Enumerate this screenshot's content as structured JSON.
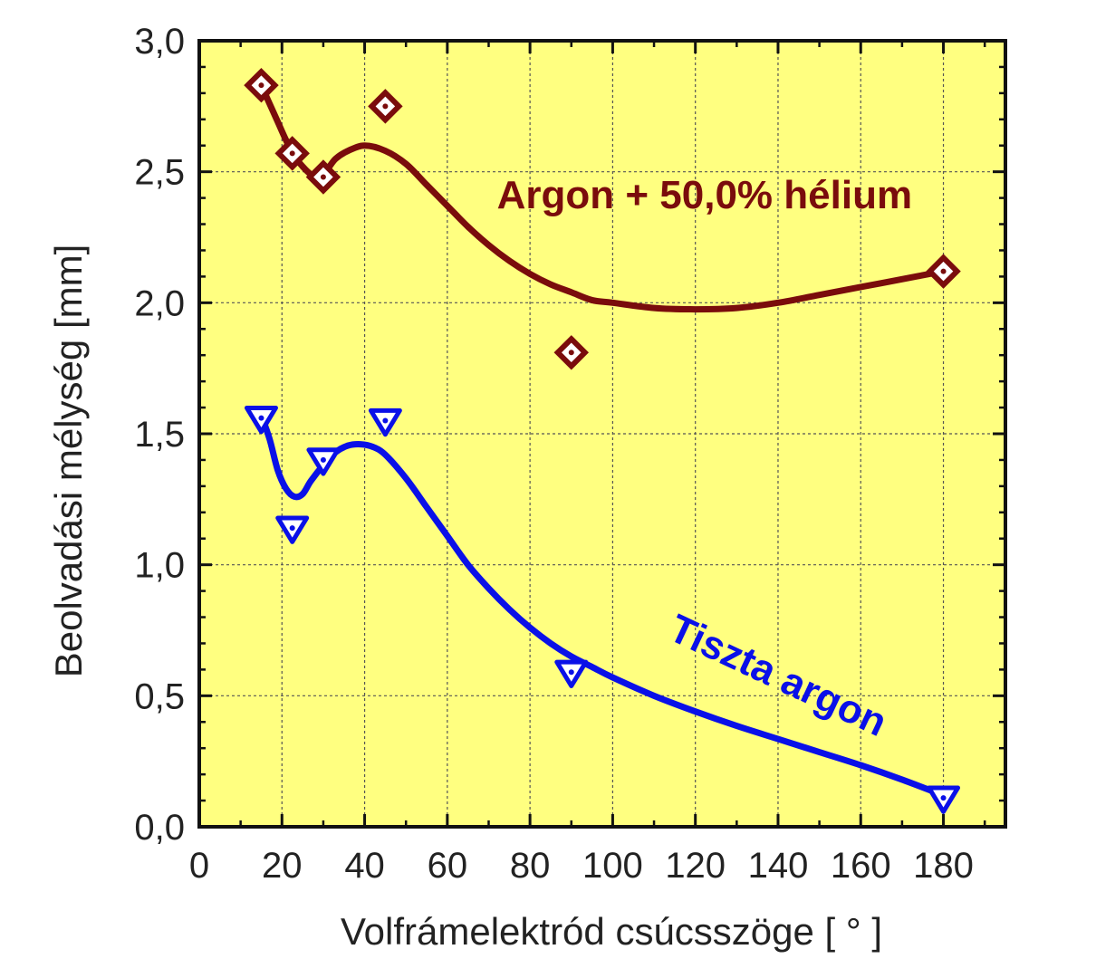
{
  "chart_data": {
    "type": "scatter",
    "title": "",
    "xlabel": "Volfrámelektród csúcsszöge [ ° ]",
    "ylabel": "Beolvadási mélység [mm]",
    "xlim": [
      0,
      195
    ],
    "ylim": [
      0,
      3.0
    ],
    "x_ticks": [
      0,
      20,
      40,
      60,
      80,
      100,
      120,
      140,
      160,
      180
    ],
    "x_tick_labels": [
      "0",
      "20",
      "40",
      "60",
      "80",
      "100",
      "120",
      "140",
      "160",
      "180"
    ],
    "y_ticks": [
      0,
      0.5,
      1.0,
      1.5,
      2.0,
      2.5,
      3.0
    ],
    "y_tick_labels": [
      "0,0",
      "0,5",
      "1,0",
      "1,5",
      "2,0",
      "2,5",
      "3,0"
    ],
    "grid": true,
    "background_color": "#ffff80",
    "series": [
      {
        "name": "Argon + 50,0% hélium",
        "color": "#7a0c0c",
        "marker": "diamond",
        "points": [
          {
            "x": 15,
            "y": 2.83
          },
          {
            "x": 22.5,
            "y": 2.57
          },
          {
            "x": 30,
            "y": 2.48
          },
          {
            "x": 45,
            "y": 2.75
          },
          {
            "x": 90,
            "y": 1.81
          },
          {
            "x": 180,
            "y": 2.12
          }
        ],
        "fit_curve": [
          [
            15,
            2.83
          ],
          [
            17,
            2.76
          ],
          [
            19,
            2.69
          ],
          [
            21,
            2.62
          ],
          [
            23,
            2.56
          ],
          [
            25,
            2.52
          ],
          [
            27,
            2.49
          ],
          [
            29,
            2.48
          ],
          [
            31,
            2.51
          ],
          [
            33,
            2.55
          ],
          [
            36,
            2.58
          ],
          [
            40,
            2.6
          ],
          [
            45,
            2.58
          ],
          [
            50,
            2.53
          ],
          [
            55,
            2.45
          ],
          [
            60,
            2.37
          ],
          [
            65,
            2.29
          ],
          [
            70,
            2.22
          ],
          [
            75,
            2.16
          ],
          [
            80,
            2.11
          ],
          [
            85,
            2.07
          ],
          [
            90,
            2.04
          ],
          [
            95,
            2.01
          ],
          [
            100,
            2.0
          ],
          [
            110,
            1.98
          ],
          [
            120,
            1.975
          ],
          [
            130,
            1.98
          ],
          [
            140,
            2.0
          ],
          [
            150,
            2.03
          ],
          [
            160,
            2.06
          ],
          [
            170,
            2.09
          ],
          [
            180,
            2.12
          ]
        ]
      },
      {
        "name": "Tiszta argon",
        "color": "#0a10e8",
        "marker": "triangle-down",
        "points": [
          {
            "x": 15,
            "y": 1.56
          },
          {
            "x": 22.5,
            "y": 1.14
          },
          {
            "x": 30,
            "y": 1.4
          },
          {
            "x": 45,
            "y": 1.55
          },
          {
            "x": 90,
            "y": 0.59
          },
          {
            "x": 180,
            "y": 0.11
          }
        ],
        "fit_curve": [
          [
            15,
            1.57
          ],
          [
            17,
            1.48
          ],
          [
            19,
            1.36
          ],
          [
            21,
            1.29
          ],
          [
            23,
            1.26
          ],
          [
            25,
            1.27
          ],
          [
            27,
            1.32
          ],
          [
            30,
            1.38
          ],
          [
            33,
            1.43
          ],
          [
            36,
            1.455
          ],
          [
            39,
            1.46
          ],
          [
            42,
            1.45
          ],
          [
            45,
            1.42
          ],
          [
            50,
            1.33
          ],
          [
            55,
            1.22
          ],
          [
            60,
            1.11
          ],
          [
            65,
            1.0
          ],
          [
            70,
            0.91
          ],
          [
            75,
            0.83
          ],
          [
            80,
            0.76
          ],
          [
            85,
            0.7
          ],
          [
            90,
            0.65
          ],
          [
            95,
            0.61
          ],
          [
            100,
            0.57
          ],
          [
            110,
            0.5
          ],
          [
            120,
            0.44
          ],
          [
            130,
            0.385
          ],
          [
            140,
            0.335
          ],
          [
            150,
            0.285
          ],
          [
            160,
            0.235
          ],
          [
            170,
            0.18
          ],
          [
            180,
            0.12
          ]
        ]
      }
    ],
    "annotations": [
      {
        "text": "Argon + 50,0% hélium",
        "series": 0,
        "x": 72,
        "y": 2.36,
        "rotation": 0
      },
      {
        "text": "Tiszta argon",
        "series": 1,
        "x": 113,
        "y": 0.72,
        "rotation": 25
      }
    ]
  }
}
